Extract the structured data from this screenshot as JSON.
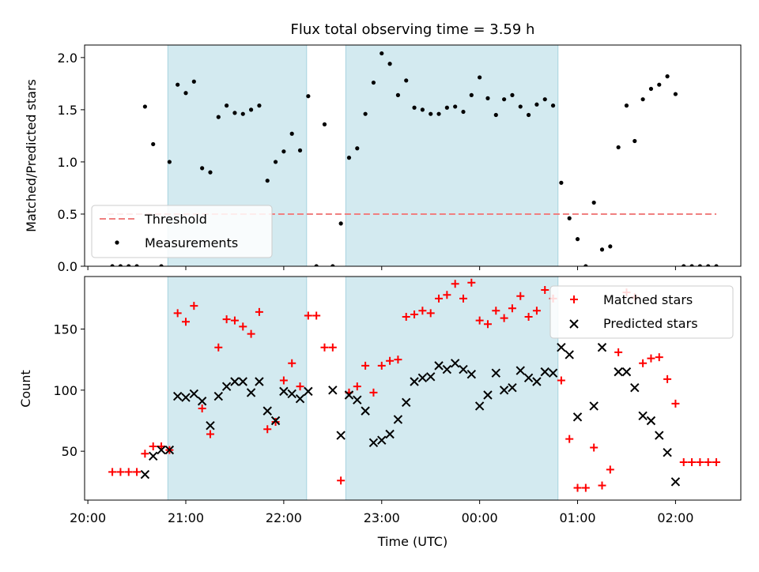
{
  "chart_data": [
    {
      "type": "scatter",
      "title": "Flux total observing time = 3.59 h",
      "xlabel": "",
      "ylabel": "Matched/Predicted stars",
      "ylim": [
        0,
        2.12
      ],
      "yticks": [
        "0.0",
        "0.5",
        "1.0",
        "1.5",
        "2.0"
      ],
      "ytick_values": [
        0,
        0.5,
        1.0,
        1.5,
        2.0
      ],
      "grid": false,
      "legend_position": "lower-left",
      "threshold": {
        "name": "Threshold",
        "y": 0.5,
        "x_start": "20:12",
        "x_end": "02:25",
        "color": "#f08080"
      },
      "shaded_regions": [
        [
          "20:49",
          "22:14"
        ],
        [
          "22:38",
          "00:48"
        ]
      ],
      "shade_color": "#d3eaf0",
      "series": [
        {
          "name": "Measurements",
          "color": "#000000",
          "points": [
            [
              "20:15",
              0.0
            ],
            [
              "20:20",
              0.0
            ],
            [
              "20:25",
              0.0
            ],
            [
              "20:30",
              0.0
            ],
            [
              "20:35",
              1.53
            ],
            [
              "20:40",
              1.17
            ],
            [
              "20:45",
              0.0
            ],
            [
              "20:50",
              1.0
            ],
            [
              "20:55",
              1.74
            ],
            [
              "21:00",
              1.66
            ],
            [
              "21:05",
              1.77
            ],
            [
              "21:10",
              0.94
            ],
            [
              "21:15",
              0.9
            ],
            [
              "21:20",
              1.43
            ],
            [
              "21:25",
              1.54
            ],
            [
              "21:30",
              1.47
            ],
            [
              "21:35",
              1.46
            ],
            [
              "21:40",
              1.5
            ],
            [
              "21:45",
              1.54
            ],
            [
              "21:50",
              0.82
            ],
            [
              "21:55",
              1.0
            ],
            [
              "22:00",
              1.1
            ],
            [
              "22:05",
              1.27
            ],
            [
              "22:10",
              1.11
            ],
            [
              "22:15",
              1.63
            ],
            [
              "22:20",
              0.0
            ],
            [
              "22:25",
              1.36
            ],
            [
              "22:30",
              0.0
            ],
            [
              "22:35",
              0.41
            ],
            [
              "22:40",
              1.04
            ],
            [
              "22:45",
              1.13
            ],
            [
              "22:50",
              1.46
            ],
            [
              "22:55",
              1.76
            ],
            [
              "23:00",
              2.04
            ],
            [
              "23:05",
              1.94
            ],
            [
              "23:10",
              1.64
            ],
            [
              "23:15",
              1.78
            ],
            [
              "23:20",
              1.52
            ],
            [
              "23:25",
              1.5
            ],
            [
              "23:30",
              1.46
            ],
            [
              "23:35",
              1.46
            ],
            [
              "23:40",
              1.52
            ],
            [
              "23:45",
              1.53
            ],
            [
              "23:50",
              1.48
            ],
            [
              "23:55",
              1.64
            ],
            [
              "00:00",
              1.81
            ],
            [
              "00:05",
              1.61
            ],
            [
              "00:10",
              1.45
            ],
            [
              "00:15",
              1.6
            ],
            [
              "00:20",
              1.64
            ],
            [
              "00:25",
              1.53
            ],
            [
              "00:30",
              1.45
            ],
            [
              "00:35",
              1.55
            ],
            [
              "00:40",
              1.6
            ],
            [
              "00:45",
              1.54
            ],
            [
              "00:50",
              0.8
            ],
            [
              "00:55",
              0.46
            ],
            [
              "01:00",
              0.26
            ],
            [
              "01:05",
              0.0
            ],
            [
              "01:10",
              0.61
            ],
            [
              "01:15",
              0.16
            ],
            [
              "01:20",
              0.19
            ],
            [
              "01:25",
              1.14
            ],
            [
              "01:30",
              1.54
            ],
            [
              "01:35",
              1.2
            ],
            [
              "01:40",
              1.6
            ],
            [
              "01:45",
              1.7
            ],
            [
              "01:50",
              1.74
            ],
            [
              "01:55",
              1.82
            ],
            [
              "02:00",
              1.65
            ],
            [
              "02:05",
              0.0
            ],
            [
              "02:10",
              0.0
            ],
            [
              "02:15",
              0.0
            ],
            [
              "02:20",
              0.0
            ],
            [
              "02:25",
              0.0
            ]
          ]
        }
      ]
    },
    {
      "type": "scatter",
      "title": "",
      "xlabel": "Time (UTC)",
      "ylabel": "Count",
      "ylim": [
        10,
        193
      ],
      "xlim": [
        "19:58",
        "02:40"
      ],
      "yticks": [
        "50",
        "100",
        "150"
      ],
      "ytick_values": [
        50,
        100,
        150
      ],
      "xticks": [
        "20:00",
        "21:00",
        "22:00",
        "23:00",
        "00:00",
        "01:00",
        "02:00"
      ],
      "grid": false,
      "legend_position": "upper-right",
      "shaded_regions": [
        [
          "20:49",
          "22:14"
        ],
        [
          "22:38",
          "00:48"
        ]
      ],
      "shade_color": "#d3eaf0",
      "series": [
        {
          "name": "Matched stars",
          "color": "#ff0000",
          "marker": "plus",
          "points": [
            [
              "20:15",
              33
            ],
            [
              "20:20",
              33
            ],
            [
              "20:25",
              33
            ],
            [
              "20:30",
              33
            ],
            [
              "20:35",
              48
            ],
            [
              "20:40",
              54
            ],
            [
              "20:45",
              54
            ],
            [
              "20:50",
              51
            ],
            [
              "20:55",
              163
            ],
            [
              "21:00",
              156
            ],
            [
              "21:05",
              169
            ],
            [
              "21:10",
              85
            ],
            [
              "21:15",
              64
            ],
            [
              "21:20",
              135
            ],
            [
              "21:25",
              158
            ],
            [
              "21:30",
              157
            ],
            [
              "21:35",
              152
            ],
            [
              "21:40",
              146
            ],
            [
              "21:45",
              164
            ],
            [
              "21:50",
              68
            ],
            [
              "21:55",
              74
            ],
            [
              "22:00",
              108
            ],
            [
              "22:05",
              122
            ],
            [
              "22:10",
              103
            ],
            [
              "22:15",
              161
            ],
            [
              "22:20",
              161
            ],
            [
              "22:25",
              135
            ],
            [
              "22:30",
              135
            ],
            [
              "22:35",
              26
            ],
            [
              "22:40",
              98
            ],
            [
              "22:45",
              103
            ],
            [
              "22:50",
              120
            ],
            [
              "22:55",
              98
            ],
            [
              "23:00",
              120
            ],
            [
              "23:05",
              124
            ],
            [
              "23:10",
              125
            ],
            [
              "23:15",
              160
            ],
            [
              "23:20",
              162
            ],
            [
              "23:25",
              165
            ],
            [
              "23:30",
              163
            ],
            [
              "23:35",
              175
            ],
            [
              "23:40",
              178
            ],
            [
              "23:45",
              187
            ],
            [
              "23:50",
              175
            ],
            [
              "23:55",
              188
            ],
            [
              "00:00",
              157
            ],
            [
              "00:05",
              154
            ],
            [
              "00:10",
              165
            ],
            [
              "00:15",
              159
            ],
            [
              "00:20",
              167
            ],
            [
              "00:25",
              177
            ],
            [
              "00:30",
              160
            ],
            [
              "00:35",
              165
            ],
            [
              "00:40",
              182
            ],
            [
              "00:45",
              175
            ],
            [
              "00:50",
              108
            ],
            [
              "00:55",
              60
            ],
            [
              "01:00",
              20
            ],
            [
              "01:05",
              20
            ],
            [
              "01:10",
              53
            ],
            [
              "01:15",
              22
            ],
            [
              "01:20",
              35
            ],
            [
              "01:25",
              131
            ],
            [
              "01:30",
              180
            ],
            [
              "01:35",
              176
            ],
            [
              "01:40",
              122
            ],
            [
              "01:45",
              126
            ],
            [
              "01:50",
              127
            ],
            [
              "01:55",
              109
            ],
            [
              "02:00",
              89
            ],
            [
              "02:05",
              41
            ],
            [
              "02:10",
              41
            ],
            [
              "02:15",
              41
            ],
            [
              "02:20",
              41
            ],
            [
              "02:25",
              41
            ]
          ]
        },
        {
          "name": "Predicted stars",
          "color": "#000000",
          "marker": "x",
          "points": [
            [
              "20:35",
              31
            ],
            [
              "20:40",
              46
            ],
            [
              "20:45",
              51
            ],
            [
              "20:50",
              51
            ],
            [
              "20:55",
              95
            ],
            [
              "21:00",
              94
            ],
            [
              "21:05",
              97
            ],
            [
              "21:10",
              91
            ],
            [
              "21:15",
              71
            ],
            [
              "21:20",
              95
            ],
            [
              "21:25",
              103
            ],
            [
              "21:30",
              107
            ],
            [
              "21:35",
              107
            ],
            [
              "21:40",
              98
            ],
            [
              "21:45",
              107
            ],
            [
              "21:50",
              83
            ],
            [
              "21:55",
              75
            ],
            [
              "22:00",
              99
            ],
            [
              "22:05",
              97
            ],
            [
              "22:10",
              93
            ],
            [
              "22:15",
              99
            ],
            [
              "22:30",
              100
            ],
            [
              "22:35",
              63
            ],
            [
              "22:40",
              96
            ],
            [
              "22:45",
              92
            ],
            [
              "22:50",
              83
            ],
            [
              "22:55",
              57
            ],
            [
              "23:00",
              59
            ],
            [
              "23:05",
              64
            ],
            [
              "23:10",
              76
            ],
            [
              "23:15",
              90
            ],
            [
              "23:20",
              107
            ],
            [
              "23:25",
              110
            ],
            [
              "23:30",
              111
            ],
            [
              "23:35",
              120
            ],
            [
              "23:40",
              117
            ],
            [
              "23:45",
              122
            ],
            [
              "23:50",
              117
            ],
            [
              "23:55",
              113
            ],
            [
              "00:00",
              87
            ],
            [
              "00:05",
              96
            ],
            [
              "00:10",
              114
            ],
            [
              "00:15",
              100
            ],
            [
              "00:20",
              102
            ],
            [
              "00:25",
              116
            ],
            [
              "00:30",
              110
            ],
            [
              "00:35",
              107
            ],
            [
              "00:40",
              115
            ],
            [
              "00:45",
              114
            ],
            [
              "00:50",
              135
            ],
            [
              "00:55",
              129
            ],
            [
              "01:00",
              78
            ],
            [
              "01:10",
              87
            ],
            [
              "01:15",
              135
            ],
            [
              "01:25",
              115
            ],
            [
              "01:30",
              115
            ],
            [
              "01:35",
              102
            ],
            [
              "01:40",
              79
            ],
            [
              "01:45",
              75
            ],
            [
              "01:50",
              63
            ],
            [
              "01:55",
              49
            ],
            [
              "02:00",
              25
            ]
          ]
        }
      ]
    }
  ]
}
